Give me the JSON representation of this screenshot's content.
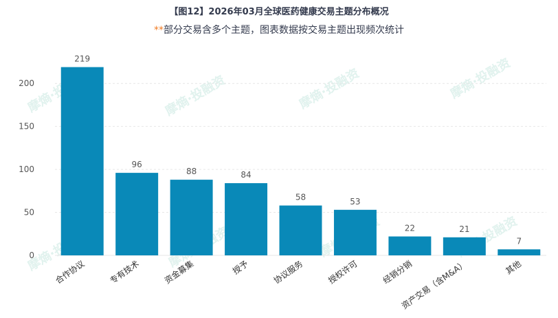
{
  "header": {
    "title": "【图12】2026年03月全球医药健康交易主题分布概况",
    "subtitle_mark": "**",
    "subtitle_text": "部分交易含多个主题，图表数据按交易主题出现频次统计"
  },
  "watermark": "摩熵·投融资",
  "colors": {
    "bar": "#0989b8",
    "grid": "#e6e6e6",
    "text": "#555555"
  },
  "chart_data": {
    "type": "bar",
    "categories": [
      "合作协议",
      "专有技术",
      "资金募集",
      "授予",
      "协议服务",
      "授权许可",
      "经销分销",
      "资产交易（含M&A）",
      "其他"
    ],
    "values": [
      219,
      96,
      88,
      84,
      58,
      53,
      22,
      21,
      7
    ],
    "ylim": [
      0,
      225
    ],
    "yticks": [
      0,
      50,
      100,
      150,
      200
    ],
    "grid": true
  }
}
